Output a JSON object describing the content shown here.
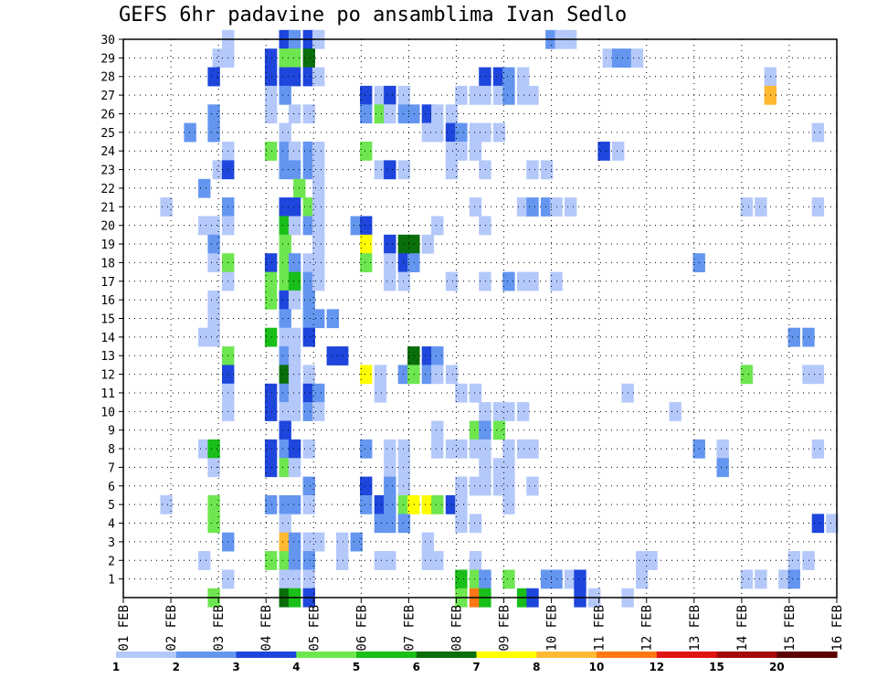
{
  "chart_data": {
    "type": "heatmap",
    "title": "GEFS 6hr padavine po ansamblima Ivan Sedlo",
    "xlabel": "",
    "ylabel": "",
    "x_tick_labels": [
      "01 FEB",
      "02 FEB",
      "03 FEB",
      "04 FEB",
      "05 FEB",
      "06 FEB",
      "07 FEB",
      "08 FEB",
      "09 FEB",
      "10 FEB",
      "11 FEB",
      "12 FEB",
      "13 FEB",
      "14 FEB",
      "15 FEB",
      "16 FEB"
    ],
    "x_range_days": [
      1,
      16
    ],
    "y_tick_labels": [
      "1",
      "2",
      "3",
      "4",
      "5",
      "6",
      "7",
      "8",
      "9",
      "10",
      "11",
      "12",
      "13",
      "14",
      "15",
      "16",
      "17",
      "18",
      "19",
      "20",
      "21",
      "22",
      "23",
      "24",
      "25",
      "26",
      "27",
      "28",
      "29",
      "30"
    ],
    "y_range": [
      0,
      30
    ],
    "grid": true,
    "legend": {
      "placement": "bottom",
      "colors": [
        "#b4c8fa",
        "#6496f0",
        "#1e46dc",
        "#6ee650",
        "#19be19",
        "#0a6e0a",
        "#ffff00",
        "#ffb932",
        "#ff7814",
        "#e11414",
        "#a50a0a",
        "#5a0000"
      ],
      "labels": [
        "1",
        "2",
        "3",
        "4",
        "5",
        "6",
        "7",
        "8",
        "10",
        "12",
        "15",
        "20"
      ]
    },
    "cells": [
      [
        3.2,
        30,
        1
      ],
      [
        4.4,
        30,
        3
      ],
      [
        4.6,
        30,
        2
      ],
      [
        4.9,
        30,
        3
      ],
      [
        5.1,
        30,
        1
      ],
      [
        10.0,
        30,
        2
      ],
      [
        10.2,
        30,
        1
      ],
      [
        10.4,
        30,
        1
      ],
      [
        3.0,
        29,
        1
      ],
      [
        3.2,
        29,
        1
      ],
      [
        4.1,
        29,
        3
      ],
      [
        4.4,
        29,
        4
      ],
      [
        4.6,
        29,
        4
      ],
      [
        4.9,
        29,
        6
      ],
      [
        11.2,
        29,
        1
      ],
      [
        11.4,
        29,
        2
      ],
      [
        11.6,
        29,
        2
      ],
      [
        11.8,
        29,
        1
      ],
      [
        2.9,
        28,
        3
      ],
      [
        4.1,
        28,
        3
      ],
      [
        4.4,
        28,
        3
      ],
      [
        4.6,
        28,
        3
      ],
      [
        4.9,
        28,
        3
      ],
      [
        5.1,
        28,
        1
      ],
      [
        8.6,
        28,
        3
      ],
      [
        8.9,
        28,
        3
      ],
      [
        9.1,
        28,
        2
      ],
      [
        9.4,
        28,
        1
      ],
      [
        14.6,
        28,
        1
      ],
      [
        4.1,
        27,
        1
      ],
      [
        4.4,
        27,
        2
      ],
      [
        6.1,
        27,
        3
      ],
      [
        6.4,
        27,
        1
      ],
      [
        6.6,
        27,
        3
      ],
      [
        6.9,
        27,
        1
      ],
      [
        8.1,
        27,
        1
      ],
      [
        8.4,
        27,
        1
      ],
      [
        8.6,
        27,
        1
      ],
      [
        8.9,
        27,
        1
      ],
      [
        9.1,
        27,
        2
      ],
      [
        9.4,
        27,
        1
      ],
      [
        9.6,
        27,
        1
      ],
      [
        14.6,
        27,
        8
      ],
      [
        4.1,
        26,
        1
      ],
      [
        4.6,
        26,
        1
      ],
      [
        4.9,
        26,
        1
      ],
      [
        6.1,
        26,
        2
      ],
      [
        6.4,
        26,
        4
      ],
      [
        6.6,
        26,
        1
      ],
      [
        6.9,
        26,
        2
      ],
      [
        7.1,
        26,
        2
      ],
      [
        7.4,
        26,
        3
      ],
      [
        7.6,
        26,
        1
      ],
      [
        7.9,
        26,
        1
      ],
      [
        2.9,
        26,
        2
      ],
      [
        2.4,
        25,
        2
      ],
      [
        2.9,
        25,
        2
      ],
      [
        4.4,
        25,
        1
      ],
      [
        7.4,
        25,
        1
      ],
      [
        7.6,
        25,
        1
      ],
      [
        7.9,
        25,
        3
      ],
      [
        8.1,
        25,
        2
      ],
      [
        8.4,
        25,
        1
      ],
      [
        8.6,
        25,
        1
      ],
      [
        8.9,
        25,
        1
      ],
      [
        15.6,
        25,
        1
      ],
      [
        3.2,
        24,
        1
      ],
      [
        4.1,
        24,
        4
      ],
      [
        4.4,
        24,
        2
      ],
      [
        4.6,
        24,
        1
      ],
      [
        4.9,
        24,
        2
      ],
      [
        5.1,
        24,
        1
      ],
      [
        6.1,
        24,
        4
      ],
      [
        7.9,
        24,
        1
      ],
      [
        8.1,
        24,
        1
      ],
      [
        8.4,
        24,
        1
      ],
      [
        11.1,
        24,
        3
      ],
      [
        11.4,
        24,
        1
      ],
      [
        3.0,
        23,
        1
      ],
      [
        3.2,
        23,
        3
      ],
      [
        4.4,
        23,
        2
      ],
      [
        4.6,
        23,
        2
      ],
      [
        4.9,
        23,
        2
      ],
      [
        5.1,
        23,
        1
      ],
      [
        6.4,
        23,
        1
      ],
      [
        6.6,
        23,
        3
      ],
      [
        6.9,
        23,
        1
      ],
      [
        7.9,
        23,
        1
      ],
      [
        8.6,
        23,
        1
      ],
      [
        9.6,
        23,
        1
      ],
      [
        9.9,
        23,
        1
      ],
      [
        2.7,
        22,
        2
      ],
      [
        5.1,
        22,
        1
      ],
      [
        4.7,
        22,
        4
      ],
      [
        1.9,
        21,
        1
      ],
      [
        3.2,
        21,
        2
      ],
      [
        4.4,
        21,
        3
      ],
      [
        4.6,
        21,
        3
      ],
      [
        4.9,
        21,
        4
      ],
      [
        5.1,
        21,
        1
      ],
      [
        8.4,
        21,
        1
      ],
      [
        9.4,
        21,
        1
      ],
      [
        9.6,
        21,
        2
      ],
      [
        9.9,
        21,
        2
      ],
      [
        10.1,
        21,
        1
      ],
      [
        10.4,
        21,
        1
      ],
      [
        14.1,
        21,
        1
      ],
      [
        14.4,
        21,
        1
      ],
      [
        15.6,
        21,
        1
      ],
      [
        2.7,
        20,
        1
      ],
      [
        2.9,
        20,
        1
      ],
      [
        3.2,
        20,
        1
      ],
      [
        4.4,
        20,
        5
      ],
      [
        4.6,
        20,
        1
      ],
      [
        4.9,
        20,
        2
      ],
      [
        5.1,
        20,
        1
      ],
      [
        5.9,
        20,
        2
      ],
      [
        6.1,
        20,
        3
      ],
      [
        7.6,
        20,
        1
      ],
      [
        8.6,
        20,
        1
      ],
      [
        2.9,
        19,
        2
      ],
      [
        4.4,
        19,
        4
      ],
      [
        5.1,
        19,
        1
      ],
      [
        6.1,
        19,
        7
      ],
      [
        6.6,
        19,
        3
      ],
      [
        6.9,
        19,
        6
      ],
      [
        7.1,
        19,
        6
      ],
      [
        7.4,
        19,
        1
      ],
      [
        2.9,
        18,
        1
      ],
      [
        3.2,
        18,
        4
      ],
      [
        4.1,
        18,
        3
      ],
      [
        4.4,
        18,
        4
      ],
      [
        4.6,
        18,
        2
      ],
      [
        4.9,
        18,
        1
      ],
      [
        5.1,
        18,
        1
      ],
      [
        6.1,
        18,
        4
      ],
      [
        6.6,
        18,
        1
      ],
      [
        6.9,
        18,
        3
      ],
      [
        7.1,
        18,
        2
      ],
      [
        13.1,
        18,
        2
      ],
      [
        3.2,
        17,
        1
      ],
      [
        4.1,
        17,
        4
      ],
      [
        4.4,
        17,
        4
      ],
      [
        4.6,
        17,
        5
      ],
      [
        4.9,
        17,
        2
      ],
      [
        5.1,
        17,
        1
      ],
      [
        6.6,
        17,
        1
      ],
      [
        6.9,
        17,
        1
      ],
      [
        7.9,
        17,
        1
      ],
      [
        8.6,
        17,
        1
      ],
      [
        9.1,
        17,
        2
      ],
      [
        9.4,
        17,
        1
      ],
      [
        9.6,
        17,
        1
      ],
      [
        10.1,
        17,
        1
      ],
      [
        2.9,
        16,
        1
      ],
      [
        4.1,
        16,
        4
      ],
      [
        4.4,
        16,
        3
      ],
      [
        4.6,
        16,
        1
      ],
      [
        4.9,
        16,
        2
      ],
      [
        2.9,
        15,
        1
      ],
      [
        4.4,
        15,
        2
      ],
      [
        4.9,
        15,
        2
      ],
      [
        5.1,
        15,
        2
      ],
      [
        5.4,
        15,
        2
      ],
      [
        2.7,
        14,
        1
      ],
      [
        2.9,
        14,
        1
      ],
      [
        4.1,
        14,
        5
      ],
      [
        4.4,
        14,
        1
      ],
      [
        4.6,
        14,
        1
      ],
      [
        4.9,
        14,
        3
      ],
      [
        15.1,
        14,
        2
      ],
      [
        15.4,
        14,
        2
      ],
      [
        3.2,
        13,
        4
      ],
      [
        4.4,
        13,
        2
      ],
      [
        4.6,
        13,
        1
      ],
      [
        5.4,
        13,
        3
      ],
      [
        5.6,
        13,
        3
      ],
      [
        7.1,
        13,
        6
      ],
      [
        7.4,
        13,
        3
      ],
      [
        7.6,
        13,
        2
      ],
      [
        3.2,
        12,
        3
      ],
      [
        4.4,
        12,
        6
      ],
      [
        4.6,
        12,
        1
      ],
      [
        4.9,
        12,
        1
      ],
      [
        6.1,
        12,
        7
      ],
      [
        6.4,
        12,
        1
      ],
      [
        6.9,
        12,
        2
      ],
      [
        7.1,
        12,
        4
      ],
      [
        7.4,
        12,
        2
      ],
      [
        7.6,
        12,
        1
      ],
      [
        7.9,
        12,
        1
      ],
      [
        14.1,
        12,
        4
      ],
      [
        15.4,
        12,
        1
      ],
      [
        15.6,
        12,
        1
      ],
      [
        3.2,
        11,
        1
      ],
      [
        4.1,
        11,
        3
      ],
      [
        4.4,
        11,
        2
      ],
      [
        4.6,
        11,
        1
      ],
      [
        4.9,
        11,
        3
      ],
      [
        5.1,
        11,
        2
      ],
      [
        6.4,
        11,
        1
      ],
      [
        8.1,
        11,
        1
      ],
      [
        8.4,
        11,
        1
      ],
      [
        11.6,
        11,
        1
      ],
      [
        3.2,
        10,
        1
      ],
      [
        4.1,
        10,
        3
      ],
      [
        4.4,
        10,
        1
      ],
      [
        4.6,
        10,
        1
      ],
      [
        4.9,
        10,
        2
      ],
      [
        5.1,
        10,
        1
      ],
      [
        8.6,
        10,
        1
      ],
      [
        8.9,
        10,
        1
      ],
      [
        9.1,
        10,
        1
      ],
      [
        9.4,
        10,
        1
      ],
      [
        12.6,
        10,
        1
      ],
      [
        4.4,
        9,
        3
      ],
      [
        7.6,
        9,
        1
      ],
      [
        8.4,
        9,
        4
      ],
      [
        8.6,
        9,
        2
      ],
      [
        8.9,
        9,
        4
      ],
      [
        2.7,
        8,
        1
      ],
      [
        2.9,
        8,
        5
      ],
      [
        4.1,
        8,
        3
      ],
      [
        4.4,
        8,
        2
      ],
      [
        4.6,
        8,
        3
      ],
      [
        4.9,
        8,
        1
      ],
      [
        6.1,
        8,
        2
      ],
      [
        6.6,
        8,
        1
      ],
      [
        6.9,
        8,
        1
      ],
      [
        7.6,
        8,
        1
      ],
      [
        7.9,
        8,
        1
      ],
      [
        8.1,
        8,
        1
      ],
      [
        8.4,
        8,
        1
      ],
      [
        8.6,
        8,
        1
      ],
      [
        9.1,
        8,
        1
      ],
      [
        9.4,
        8,
        1
      ],
      [
        9.6,
        8,
        1
      ],
      [
        13.1,
        8,
        2
      ],
      [
        13.6,
        8,
        1
      ],
      [
        15.6,
        8,
        1
      ],
      [
        2.9,
        7,
        1
      ],
      [
        4.1,
        7,
        3
      ],
      [
        4.4,
        7,
        4
      ],
      [
        4.6,
        7,
        1
      ],
      [
        6.6,
        7,
        1
      ],
      [
        6.9,
        7,
        1
      ],
      [
        8.6,
        7,
        1
      ],
      [
        8.9,
        7,
        1
      ],
      [
        9.1,
        7,
        1
      ],
      [
        13.6,
        7,
        2
      ],
      [
        4.9,
        6,
        2
      ],
      [
        6.1,
        6,
        3
      ],
      [
        6.6,
        6,
        2
      ],
      [
        6.9,
        6,
        1
      ],
      [
        8.1,
        6,
        1
      ],
      [
        8.4,
        6,
        1
      ],
      [
        8.6,
        6,
        1
      ],
      [
        8.9,
        6,
        1
      ],
      [
        9.1,
        6,
        1
      ],
      [
        9.6,
        6,
        1
      ],
      [
        1.9,
        5,
        1
      ],
      [
        2.9,
        5,
        4
      ],
      [
        4.1,
        5,
        2
      ],
      [
        4.4,
        5,
        2
      ],
      [
        4.6,
        5,
        2
      ],
      [
        4.9,
        5,
        1
      ],
      [
        6.1,
        5,
        2
      ],
      [
        6.4,
        5,
        3
      ],
      [
        6.6,
        5,
        2
      ],
      [
        6.9,
        5,
        4
      ],
      [
        7.1,
        5,
        7
      ],
      [
        7.4,
        5,
        7
      ],
      [
        7.6,
        5,
        4
      ],
      [
        7.9,
        5,
        3
      ],
      [
        8.1,
        5,
        1
      ],
      [
        9.1,
        5,
        1
      ],
      [
        2.9,
        4,
        4
      ],
      [
        4.4,
        4,
        1
      ],
      [
        6.4,
        4,
        2
      ],
      [
        6.6,
        4,
        2
      ],
      [
        6.9,
        4,
        2
      ],
      [
        8.1,
        4,
        1
      ],
      [
        8.4,
        4,
        1
      ],
      [
        15.6,
        4,
        3
      ],
      [
        15.9,
        4,
        1
      ],
      [
        3.2,
        3,
        2
      ],
      [
        4.4,
        3,
        8
      ],
      [
        4.6,
        3,
        2
      ],
      [
        4.9,
        3,
        1
      ],
      [
        5.1,
        3,
        1
      ],
      [
        5.6,
        3,
        1
      ],
      [
        5.9,
        3,
        2
      ],
      [
        7.4,
        3,
        1
      ],
      [
        2.7,
        2,
        1
      ],
      [
        4.1,
        2,
        4
      ],
      [
        4.4,
        2,
        4
      ],
      [
        4.6,
        2,
        2
      ],
      [
        4.9,
        2,
        2
      ],
      [
        5.6,
        2,
        1
      ],
      [
        6.4,
        2,
        1
      ],
      [
        6.6,
        2,
        1
      ],
      [
        7.4,
        2,
        1
      ],
      [
        7.6,
        2,
        1
      ],
      [
        8.4,
        2,
        1
      ],
      [
        11.9,
        2,
        1
      ],
      [
        12.1,
        2,
        1
      ],
      [
        15.1,
        2,
        1
      ],
      [
        15.4,
        2,
        1
      ],
      [
        3.2,
        1,
        1
      ],
      [
        4.4,
        1,
        1
      ],
      [
        4.6,
        1,
        1
      ],
      [
        4.9,
        1,
        1
      ],
      [
        8.1,
        1,
        5
      ],
      [
        8.4,
        1,
        4
      ],
      [
        8.6,
        1,
        2
      ],
      [
        9.1,
        1,
        4
      ],
      [
        9.9,
        1,
        2
      ],
      [
        10.1,
        1,
        2
      ],
      [
        10.4,
        1,
        1
      ],
      [
        10.6,
        1,
        3
      ],
      [
        11.9,
        1,
        1
      ],
      [
        14.1,
        1,
        1
      ],
      [
        14.4,
        1,
        1
      ],
      [
        14.9,
        1,
        1
      ],
      [
        15.1,
        1,
        2
      ],
      [
        2.9,
        0,
        4
      ],
      [
        4.4,
        0,
        6
      ],
      [
        4.6,
        0,
        5
      ],
      [
        4.9,
        0,
        3
      ],
      [
        8.1,
        0,
        4
      ],
      [
        8.4,
        0,
        9
      ],
      [
        8.6,
        0,
        5
      ],
      [
        9.4,
        0,
        5
      ],
      [
        9.6,
        0,
        3
      ],
      [
        10.6,
        0,
        3
      ],
      [
        10.9,
        0,
        1
      ],
      [
        11.6,
        0,
        1
      ]
    ]
  }
}
